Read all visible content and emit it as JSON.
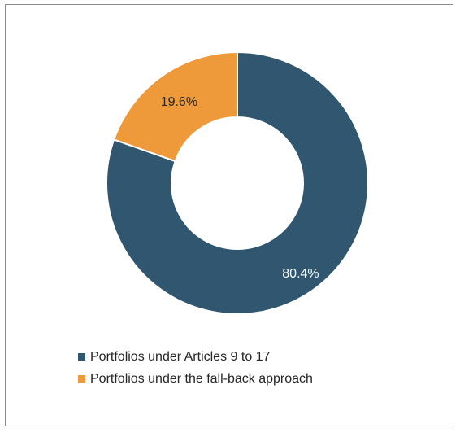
{
  "chart_data": {
    "type": "pie",
    "donut": true,
    "title": "",
    "categories": [
      "Portfolios under Articles 9 to 17",
      "Portfolios under the fall-back approach"
    ],
    "values": [
      80.4,
      19.6
    ],
    "data_labels": [
      "80.4%",
      "19.6%"
    ],
    "colors": [
      "#31566f",
      "#ee9a3a"
    ],
    "legend_position": "bottom-left"
  }
}
